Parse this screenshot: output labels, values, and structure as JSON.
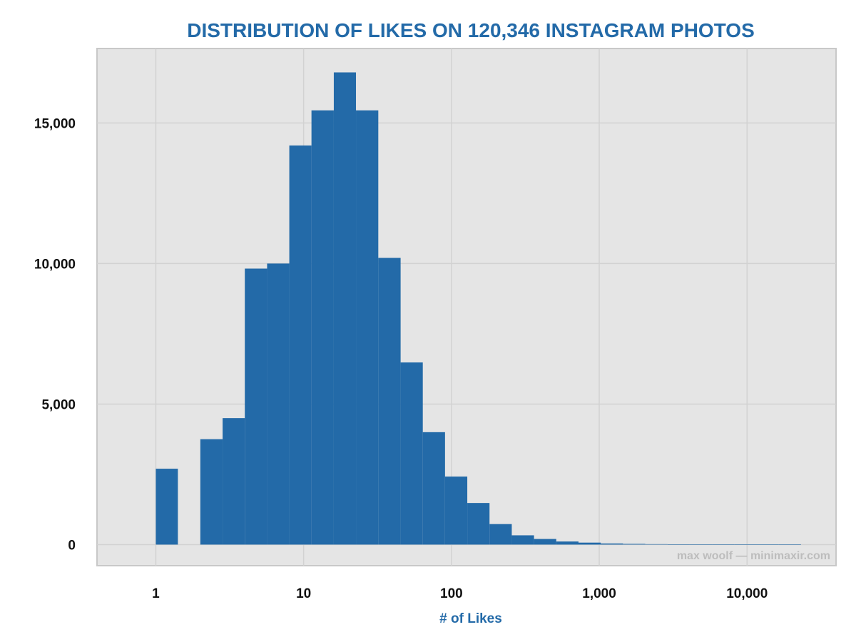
{
  "chart_data": {
    "type": "bar",
    "title": "DISTRIBUTION OF LIKES ON 120,346 INSTAGRAM PHOTOS",
    "xlabel": "# of Likes",
    "ylabel": "",
    "x_scale": "log10",
    "xlim": [
      0.4,
      40000
    ],
    "ylim": [
      -750,
      17650
    ],
    "grid": true,
    "colors": {
      "bar": "#236aa8",
      "panel": "#e5e5e5",
      "grid": "#d2d2d2",
      "border": "#c8c8c8"
    },
    "x_ticks": [
      {
        "value": 1,
        "label": "1"
      },
      {
        "value": 10,
        "label": "10"
      },
      {
        "value": 100,
        "label": "100"
      },
      {
        "value": 1000,
        "label": "1,000"
      },
      {
        "value": 10000,
        "label": "10,000"
      }
    ],
    "y_ticks": [
      {
        "value": 0,
        "label": "0"
      },
      {
        "value": 5000,
        "label": "5,000"
      },
      {
        "value": 10000,
        "label": "10,000"
      },
      {
        "value": 15000,
        "label": "15,000"
      }
    ],
    "bins": [
      {
        "x0": 1,
        "x1": 1.41,
        "count": 2700
      },
      {
        "x0": 1.41,
        "x1": 2,
        "count": 0
      },
      {
        "x0": 2,
        "x1": 2.83,
        "count": 3750
      },
      {
        "x0": 2.83,
        "x1": 4,
        "count": 4500
      },
      {
        "x0": 4,
        "x1": 5.66,
        "count": 9820
      },
      {
        "x0": 5.66,
        "x1": 8,
        "count": 10000
      },
      {
        "x0": 8,
        "x1": 11.3,
        "count": 14200
      },
      {
        "x0": 11.3,
        "x1": 16,
        "count": 15450
      },
      {
        "x0": 16,
        "x1": 22.6,
        "count": 16800
      },
      {
        "x0": 22.6,
        "x1": 32,
        "count": 15450
      },
      {
        "x0": 32,
        "x1": 45.3,
        "count": 10200
      },
      {
        "x0": 45.3,
        "x1": 64,
        "count": 6480
      },
      {
        "x0": 64,
        "x1": 90.5,
        "count": 4000
      },
      {
        "x0": 90.5,
        "x1": 128,
        "count": 2420
      },
      {
        "x0": 128,
        "x1": 181,
        "count": 1480
      },
      {
        "x0": 181,
        "x1": 256,
        "count": 730
      },
      {
        "x0": 256,
        "x1": 362,
        "count": 330
      },
      {
        "x0": 362,
        "x1": 512,
        "count": 200
      },
      {
        "x0": 512,
        "x1": 724,
        "count": 110
      },
      {
        "x0": 724,
        "x1": 1024,
        "count": 70
      },
      {
        "x0": 1024,
        "x1": 1448,
        "count": 40
      },
      {
        "x0": 1448,
        "x1": 2048,
        "count": 25
      },
      {
        "x0": 2048,
        "x1": 2896,
        "count": 15
      },
      {
        "x0": 2896,
        "x1": 4096,
        "count": 10
      },
      {
        "x0": 4096,
        "x1": 5793,
        "count": 8
      },
      {
        "x0": 5793,
        "x1": 8192,
        "count": 5
      },
      {
        "x0": 8192,
        "x1": 11585,
        "count": 3
      },
      {
        "x0": 11585,
        "x1": 16384,
        "count": 2
      },
      {
        "x0": 16384,
        "x1": 23170,
        "count": 1
      }
    ]
  },
  "credit": "max woolf — minimaxir.com"
}
